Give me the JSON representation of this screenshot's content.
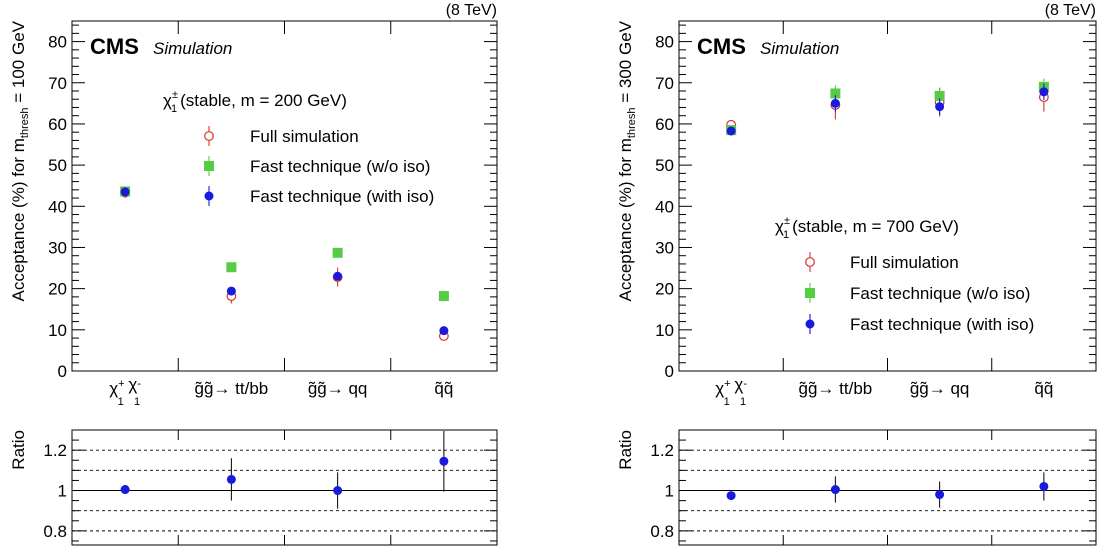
{
  "colors": {
    "full": "#d9302c",
    "fast_noiso": "#55cc44",
    "fast_iso": "#1a1adf"
  },
  "chart_data": [
    {
      "type": "scatter",
      "energy": "(8 TeV)",
      "cms": "CMS",
      "simulation": "Simulation",
      "ylabel_main": "Acceptance (%) for m",
      "ylabel_sub": "thresh",
      "ylabel_tail": " = 100 GeV",
      "ylim": [
        0,
        85
      ],
      "yticks": [
        "0",
        "10",
        "20",
        "30",
        "40",
        "50",
        "60",
        "70",
        "80"
      ],
      "categories": [
        {
          "main": "χ",
          "sup1": "+",
          "sub1": "1",
          "main2": " χ",
          "sup2": "-",
          "sub2": "1"
        },
        {
          "main": "g̃g̃→ tt/bb"
        },
        {
          "main": "g̃g̃→ qq"
        },
        {
          "main": "q̃q̃"
        }
      ],
      "legend_title": "(stable, m = 200 GeV)",
      "legend_title_symbol": "χ",
      "legend_title_sup": "±",
      "legend_title_sub": "1",
      "series": [
        {
          "name": "Full simulation",
          "values": [
            43.3,
            18.2,
            22.8,
            8.5
          ],
          "errors": [
            0.8,
            1.8,
            2.3,
            0.8
          ]
        },
        {
          "name": "Fast technique (w/o iso)",
          "values": [
            43.6,
            25.2,
            28.7,
            18.2
          ],
          "errors": [
            0.5,
            0.5,
            0.5,
            0.5
          ]
        },
        {
          "name": "Fast technique (with iso)",
          "values": [
            43.5,
            19.4,
            23.0,
            9.8
          ],
          "errors": [
            0.5,
            0.5,
            0.5,
            0.5
          ]
        }
      ],
      "ratio": {
        "ylabel": "Ratio",
        "ylim": [
          0.73,
          1.3
        ],
        "yticks": [
          "0.8",
          "1",
          "1.2"
        ],
        "values": [
          1.005,
          1.055,
          1.0,
          1.145
        ],
        "errors": [
          0.01,
          0.105,
          0.09,
          0.15
        ]
      }
    },
    {
      "type": "scatter",
      "energy": "(8 TeV)",
      "cms": "CMS",
      "simulation": "Simulation",
      "ylabel_main": "Acceptance (%) for m",
      "ylabel_sub": "thresh",
      "ylabel_tail": " = 300 GeV",
      "ylim": [
        0,
        85
      ],
      "yticks": [
        "0",
        "10",
        "20",
        "30",
        "40",
        "50",
        "60",
        "70",
        "80"
      ],
      "categories": [
        {
          "main": "χ",
          "sup1": "+",
          "sub1": "1",
          "main2": " χ",
          "sup2": "-",
          "sub2": "1"
        },
        {
          "main": "g̃g̃→ tt/bb"
        },
        {
          "main": "g̃g̃→ qq"
        },
        {
          "main": "q̃q̃"
        }
      ],
      "legend_title": "(stable, m = 700 GeV)",
      "legend_title_symbol": "χ",
      "legend_title_sup": "±",
      "legend_title_sub": "1",
      "series": [
        {
          "name": "Full simulation",
          "values": [
            59.8,
            64.6,
            65.3,
            66.5
          ],
          "errors": [
            1.0,
            3.5,
            3.5,
            3.5
          ]
        },
        {
          "name": "Fast technique (w/o iso)",
          "values": [
            58.5,
            67.4,
            66.8,
            69.0
          ],
          "errors": [
            0.5,
            2.0,
            2.0,
            2.0
          ]
        },
        {
          "name": "Fast technique (with iso)",
          "values": [
            58.3,
            65.0,
            64.2,
            67.8
          ],
          "errors": [
            0.5,
            2.0,
            2.0,
            2.0
          ]
        }
      ],
      "ratio": {
        "ylabel": "Ratio",
        "ylim": [
          0.73,
          1.3
        ],
        "yticks": [
          "0.8",
          "1",
          "1.2"
        ],
        "values": [
          0.975,
          1.005,
          0.98,
          1.02
        ],
        "errors": [
          0.012,
          0.065,
          0.065,
          0.07
        ]
      }
    }
  ]
}
